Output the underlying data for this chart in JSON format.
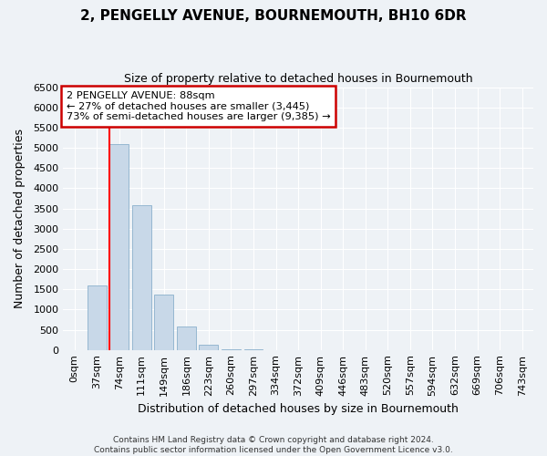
{
  "title": "2, PENGELLY AVENUE, BOURNEMOUTH, BH10 6DR",
  "subtitle": "Size of property relative to detached houses in Bournemouth",
  "xlabel": "Distribution of detached houses by size in Bournemouth",
  "ylabel": "Number of detached properties",
  "bar_color": "#c8d8e8",
  "bar_edgecolor": "#8ab0cc",
  "categories": [
    "0sqm",
    "37sqm",
    "74sqm",
    "111sqm",
    "149sqm",
    "186sqm",
    "223sqm",
    "260sqm",
    "297sqm",
    "334sqm",
    "372sqm",
    "409sqm",
    "446sqm",
    "483sqm",
    "520sqm",
    "557sqm",
    "594sqm",
    "632sqm",
    "669sqm",
    "706sqm",
    "743sqm"
  ],
  "values": [
    0,
    1600,
    5100,
    3580,
    1380,
    580,
    120,
    25,
    8,
    3,
    2,
    1,
    0,
    0,
    0,
    0,
    0,
    0,
    0,
    0,
    0
  ],
  "ylim": [
    0,
    6500
  ],
  "yticks": [
    0,
    500,
    1000,
    1500,
    2000,
    2500,
    3000,
    3500,
    4000,
    4500,
    5000,
    5500,
    6000,
    6500
  ],
  "red_line_x": 1.575,
  "annotation_text": "2 PENGELLY AVENUE: 88sqm\n← 27% of detached houses are smaller (3,445)\n73% of semi-detached houses are larger (9,385) →",
  "annotation_box_color": "#ffffff",
  "annotation_box_edgecolor": "#cc0000",
  "footer_line1": "Contains HM Land Registry data © Crown copyright and database right 2024.",
  "footer_line2": "Contains public sector information licensed under the Open Government Licence v3.0.",
  "background_color": "#eef2f6",
  "grid_color": "#ffffff",
  "title_fontsize": 11,
  "subtitle_fontsize": 9,
  "tick_fontsize": 8,
  "axis_label_fontsize": 9
}
